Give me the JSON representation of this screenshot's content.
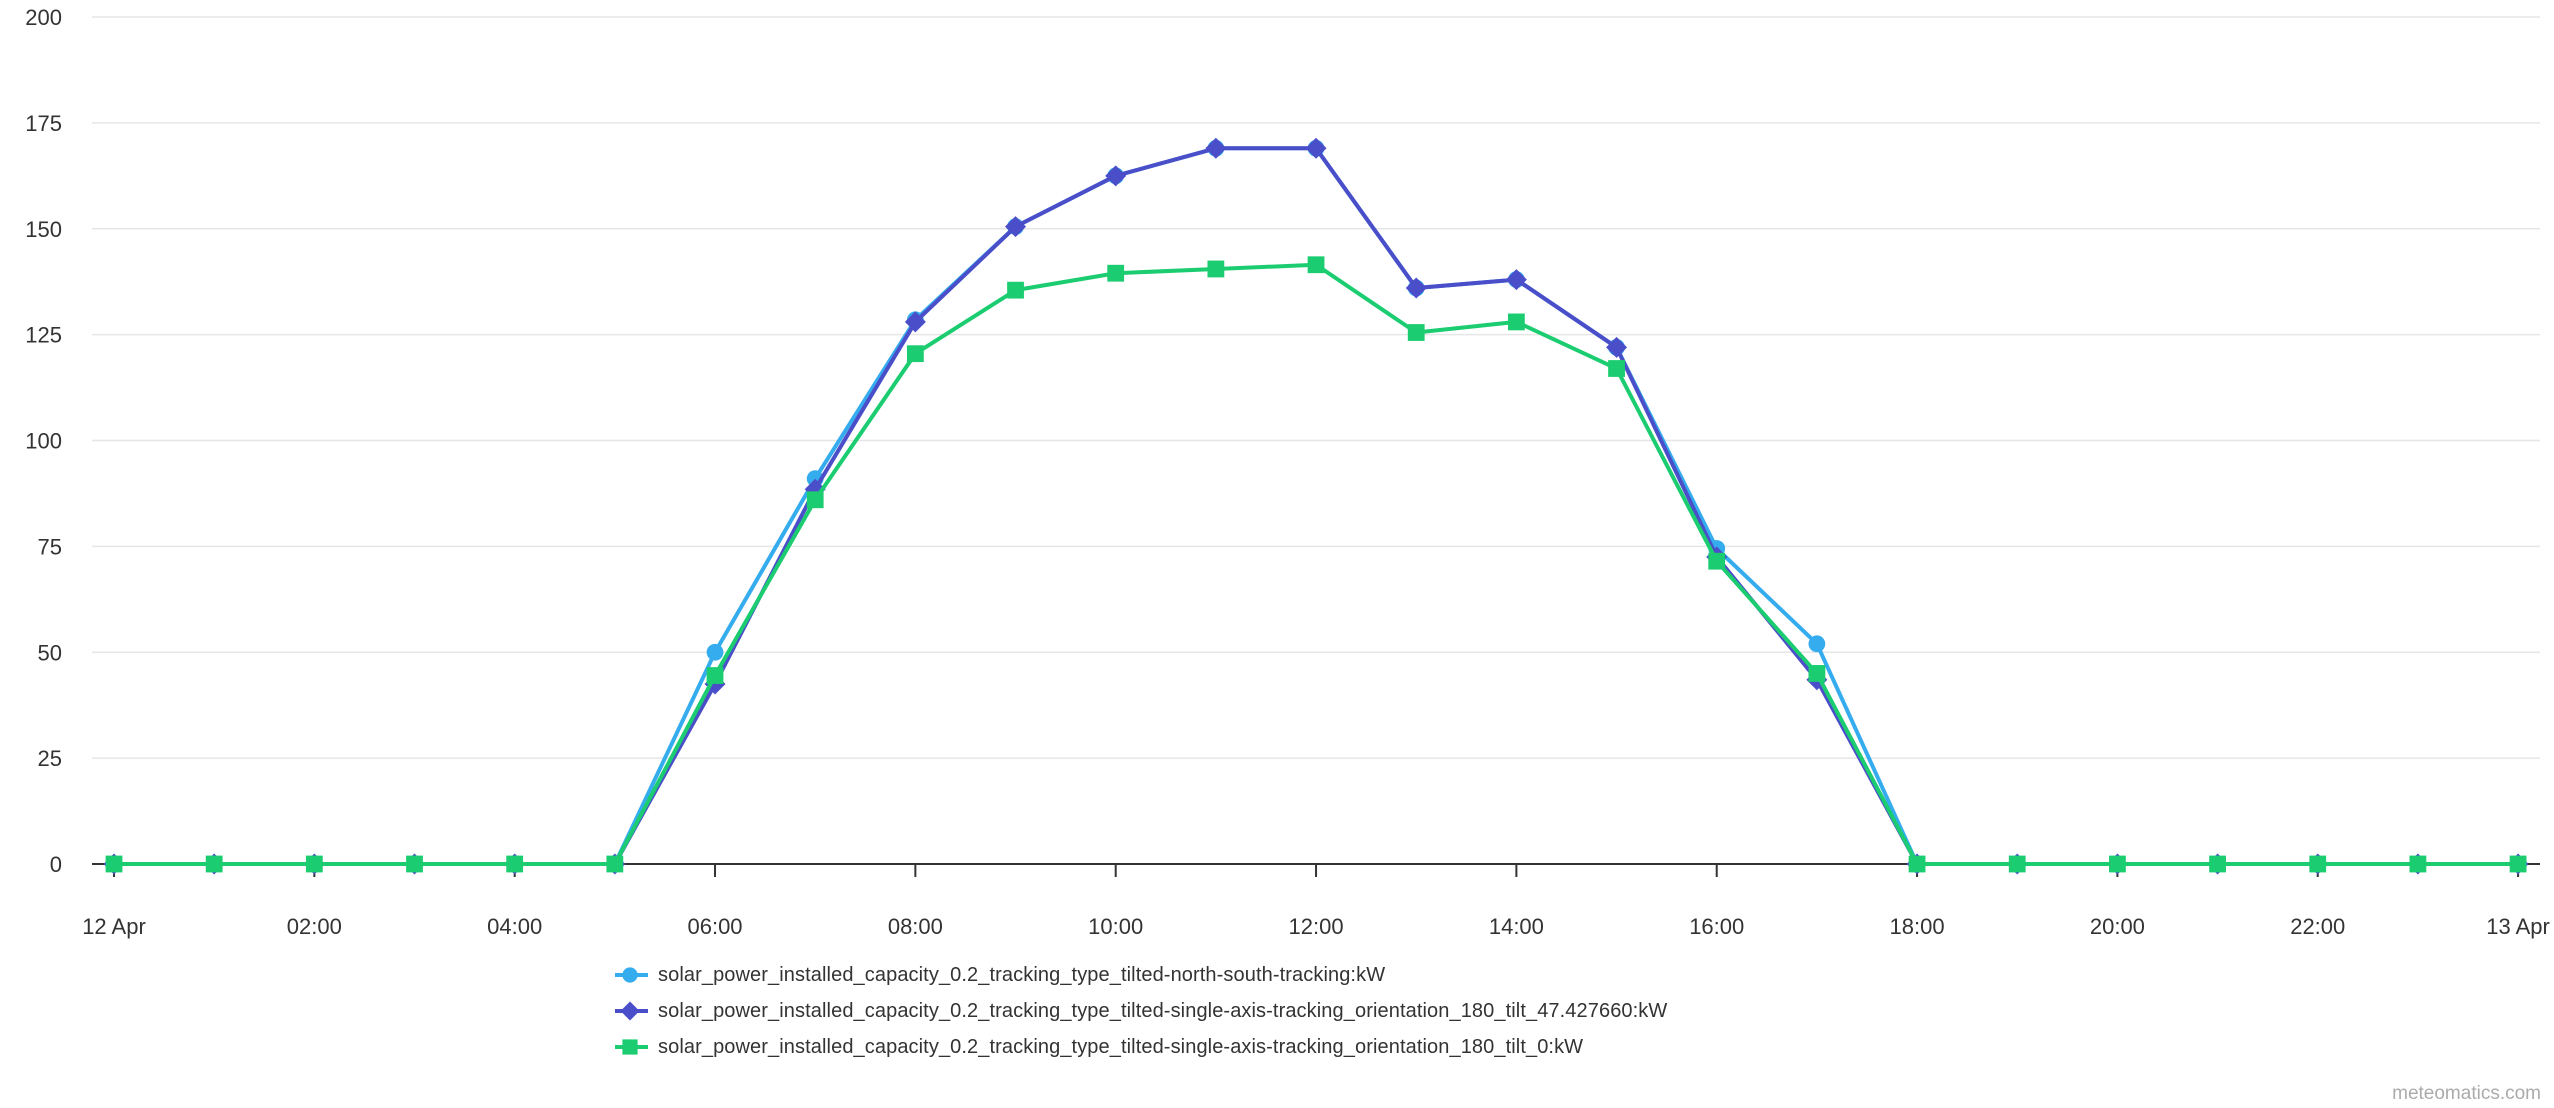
{
  "chart_data": {
    "type": "line",
    "title": "",
    "xlabel": "",
    "ylabel": "",
    "ylim": [
      0,
      200
    ],
    "grid": "horizontal",
    "legend_position": "bottom",
    "x_hours": [
      0,
      1,
      2,
      3,
      4,
      5,
      6,
      7,
      8,
      9,
      10,
      11,
      12,
      13,
      14,
      15,
      16,
      17,
      18,
      19,
      20,
      21,
      22,
      23,
      24
    ],
    "x_tick_hours": [
      0,
      2,
      4,
      6,
      8,
      10,
      12,
      14,
      16,
      18,
      20,
      22,
      24
    ],
    "x_tick_labels": [
      "12 Apr",
      "02:00",
      "04:00",
      "06:00",
      "08:00",
      "10:00",
      "12:00",
      "14:00",
      "16:00",
      "18:00",
      "20:00",
      "22:00",
      "13 Apr"
    ],
    "y_ticks": [
      0,
      25,
      50,
      75,
      100,
      125,
      150,
      175,
      200
    ],
    "y_tick_labels": [
      "0",
      "25",
      "50",
      "75",
      "100",
      "125",
      "150",
      "175",
      "200"
    ],
    "series": [
      {
        "name": "solar_power_installed_capacity_0.2_tracking_type_tilted-north-south-tracking:kW",
        "color": "#35acee",
        "marker": "circle",
        "values": [
          0,
          0,
          0,
          0,
          0,
          0,
          50,
          91,
          128.5,
          150.5,
          162.5,
          169,
          169,
          136,
          138,
          122,
          74.5,
          52,
          0,
          0,
          0,
          0,
          0,
          0,
          0
        ]
      },
      {
        "name": "solar_power_installed_capacity_0.2_tracking_type_tilted-single-axis-tracking_orientation_180_tilt_47.427660:kW",
        "color": "#4a4ec9",
        "marker": "diamond",
        "values": [
          0,
          0,
          0,
          0,
          0,
          0,
          42.5,
          88.5,
          128,
          150.5,
          162.5,
          169,
          169,
          136,
          138,
          122,
          72.5,
          43.5,
          0,
          0,
          0,
          0,
          0,
          0,
          0
        ]
      },
      {
        "name": "solar_power_installed_capacity_0.2_tracking_type_tilted-single-axis-tracking_orientation_180_tilt_0:kW",
        "color": "#1bcd70",
        "marker": "square",
        "values": [
          0,
          0,
          0,
          0,
          0,
          0,
          44.5,
          86,
          120.5,
          135.5,
          139.5,
          140.5,
          141.5,
          125.5,
          128,
          117,
          71.5,
          45,
          0,
          0,
          0,
          0,
          0,
          0,
          0
        ]
      }
    ],
    "colors": {
      "axis_line": "#333333",
      "tick_text": "#333333",
      "grid_line": "#e6e6e6",
      "watermark": "#ababab"
    },
    "watermark": "meteomatics.com"
  }
}
